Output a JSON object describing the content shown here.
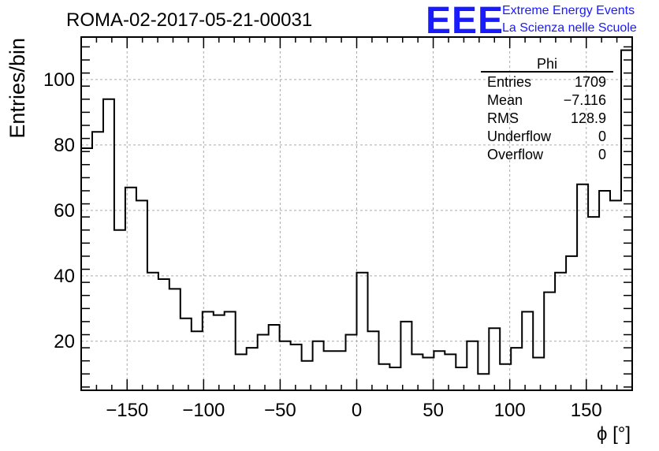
{
  "title": "ROMA-02-2017-05-21-00031",
  "logo": {
    "mark": "EEE",
    "line1": "Extreme Energy Events",
    "line2": "La Scienza nelle Scuole",
    "color": "#1a1aff"
  },
  "stats": {
    "name": "Phi",
    "rows": [
      {
        "label": "Entries",
        "value": "1709"
      },
      {
        "label": "Mean",
        "value": "−7.116"
      },
      {
        "label": "RMS",
        "value": "128.9"
      },
      {
        "label": "Underflow",
        "value": "0"
      },
      {
        "label": "Overflow",
        "value": "0"
      }
    ]
  },
  "chart_data": {
    "type": "histogram",
    "xlabel": "ϕ [°]",
    "ylabel": "Entries/bin",
    "xlim": [
      -180,
      180
    ],
    "ylim": [
      5,
      113
    ],
    "grid": true,
    "bin_width": 7.2,
    "x_ticks": [
      -150,
      -100,
      -50,
      0,
      50,
      100,
      150
    ],
    "x_tick_labels": [
      "−150",
      "−100",
      "−50",
      "0",
      "50",
      "100",
      "150"
    ],
    "y_ticks": [
      20,
      40,
      60,
      80,
      100
    ],
    "y_tick_labels": [
      "20",
      "40",
      "60",
      "80",
      "100"
    ],
    "values": [
      79,
      84,
      94,
      54,
      67,
      63,
      41,
      39,
      36,
      27,
      23,
      29,
      28,
      29,
      16,
      18,
      22,
      25,
      20,
      19,
      14,
      20,
      17,
      17,
      22,
      41,
      23,
      13,
      12,
      26,
      16,
      15,
      17,
      16,
      12,
      20,
      10,
      24,
      13,
      18,
      29,
      15,
      35,
      41,
      46,
      68,
      58,
      66,
      63,
      109
    ]
  }
}
